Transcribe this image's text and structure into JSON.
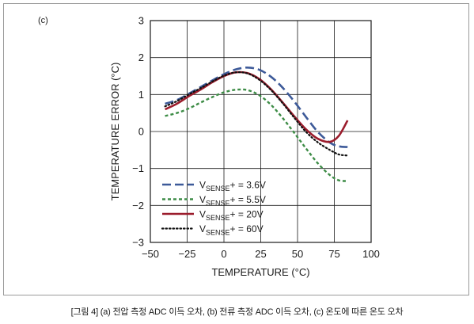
{
  "panel_label": "(c)",
  "caption": "[그림 4] (a) 전압 측정 ADC 이득 오차, (b) 전류 측정 ADC 이득 오차, (c) 온도에 따른 온도 오차",
  "chart_data": {
    "type": "line",
    "xlabel": "TEMPERATURE (°C)",
    "ylabel": "TEMPERATURE ERROR (°C)",
    "xlim": [
      -50,
      100
    ],
    "ylim": [
      -3,
      3
    ],
    "x_ticks": [
      "−50",
      "−25",
      "0",
      "25",
      "50",
      "75",
      "100"
    ],
    "y_ticks": [
      "3",
      "2",
      "1",
      "0",
      "−1",
      "−2",
      "−3"
    ],
    "grid": true,
    "legend_position": "bottom-left",
    "x": [
      -40,
      -32,
      -24,
      -16,
      -8,
      0,
      8,
      16,
      24,
      32,
      40,
      48,
      56,
      64,
      72,
      78,
      84
    ],
    "series": [
      {
        "name": "V",
        "subscript": "SENSE",
        "suffix": "+ = 3.6V",
        "color": "#3d5a99",
        "dash": "long-dash",
        "values": [
          0.75,
          0.85,
          1.02,
          1.2,
          1.38,
          1.55,
          1.68,
          1.73,
          1.67,
          1.48,
          1.18,
          0.8,
          0.38,
          -0.02,
          -0.3,
          -0.4,
          -0.42
        ]
      },
      {
        "name": "V",
        "subscript": "SENSE",
        "suffix": "+ = 5.5V",
        "color": "#3d8c46",
        "dash": "short-dash",
        "values": [
          0.42,
          0.5,
          0.62,
          0.78,
          0.93,
          1.06,
          1.13,
          1.12,
          0.98,
          0.72,
          0.36,
          -0.05,
          -0.47,
          -0.87,
          -1.18,
          -1.32,
          -1.34
        ]
      },
      {
        "name": "V",
        "subscript": "SENSE",
        "suffix": "+ = 20V",
        "color": "#9b1c2c",
        "dash": "solid",
        "values": [
          0.6,
          0.75,
          0.95,
          1.13,
          1.33,
          1.5,
          1.6,
          1.58,
          1.42,
          1.14,
          0.78,
          0.4,
          0.05,
          -0.2,
          -0.28,
          -0.12,
          0.3
        ]
      },
      {
        "name": "V",
        "subscript": "SENSE",
        "suffix": "+ = 60V",
        "color": "#111111",
        "dash": "dotted",
        "values": [
          0.68,
          0.82,
          1.0,
          1.17,
          1.35,
          1.51,
          1.6,
          1.57,
          1.4,
          1.12,
          0.76,
          0.36,
          -0.02,
          -0.3,
          -0.5,
          -0.62,
          -0.65
        ]
      }
    ]
  }
}
